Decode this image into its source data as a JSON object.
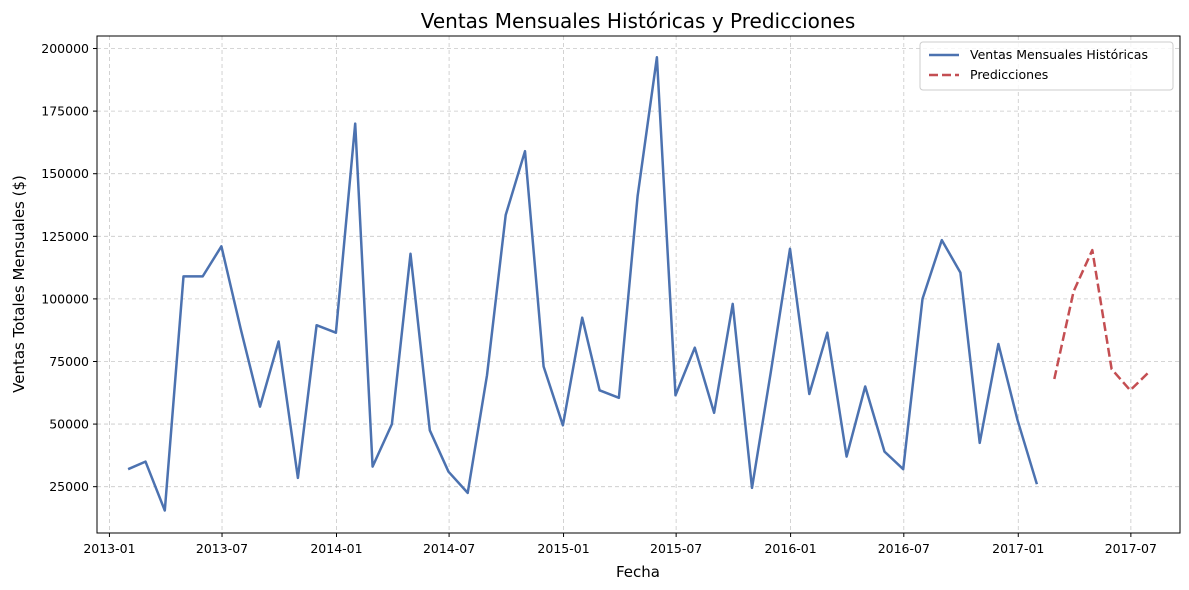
{
  "chart_data": {
    "type": "line",
    "title": "Ventas Mensuales Históricas y Predicciones",
    "xlabel": "Fecha",
    "ylabel": "Ventas Totales Mensuales ($)",
    "xlim": [
      "2012-12-12",
      "2017-09-18"
    ],
    "ylim": [
      6500,
      205000
    ],
    "x_ticks": [
      "2013-01",
      "2013-07",
      "2014-01",
      "2014-07",
      "2015-01",
      "2015-07",
      "2016-01",
      "2016-07",
      "2017-01",
      "2017-07"
    ],
    "y_ticks": [
      25000,
      50000,
      75000,
      100000,
      125000,
      150000,
      175000,
      200000
    ],
    "grid": true,
    "legend_position": "top-right",
    "series": [
      {
        "name": "Ventas Mensuales Históricas",
        "color": "#4c72b0",
        "style": "solid",
        "points": [
          [
            "2013-01-31",
            32000
          ],
          [
            "2013-02-28",
            35000
          ],
          [
            "2013-03-31",
            15500
          ],
          [
            "2013-04-30",
            109000
          ],
          [
            "2013-05-31",
            109000
          ],
          [
            "2013-06-30",
            121000
          ],
          [
            "2013-07-31",
            88000
          ],
          [
            "2013-08-31",
            57000
          ],
          [
            "2013-09-30",
            83000
          ],
          [
            "2013-10-31",
            28500
          ],
          [
            "2013-11-30",
            89500
          ],
          [
            "2013-12-31",
            86500
          ],
          [
            "2014-01-31",
            170000
          ],
          [
            "2014-02-28",
            33000
          ],
          [
            "2014-03-31",
            50000
          ],
          [
            "2014-04-30",
            118000
          ],
          [
            "2014-05-31",
            47500
          ],
          [
            "2014-06-30",
            31000
          ],
          [
            "2014-07-31",
            22500
          ],
          [
            "2014-08-31",
            69500
          ],
          [
            "2014-09-30",
            133500
          ],
          [
            "2014-10-31",
            159000
          ],
          [
            "2014-11-30",
            73000
          ],
          [
            "2014-12-31",
            49500
          ],
          [
            "2015-01-31",
            92500
          ],
          [
            "2015-02-28",
            63500
          ],
          [
            "2015-03-31",
            60500
          ],
          [
            "2015-04-30",
            141000
          ],
          [
            "2015-05-31",
            196500
          ],
          [
            "2015-06-30",
            61500
          ],
          [
            "2015-07-31",
            80500
          ],
          [
            "2015-08-31",
            54500
          ],
          [
            "2015-09-30",
            98000
          ],
          [
            "2015-10-31",
            24500
          ],
          [
            "2015-11-30",
            70500
          ],
          [
            "2015-12-31",
            120000
          ],
          [
            "2016-01-31",
            62000
          ],
          [
            "2016-02-29",
            86500
          ],
          [
            "2016-03-31",
            37000
          ],
          [
            "2016-04-30",
            65000
          ],
          [
            "2016-05-31",
            39000
          ],
          [
            "2016-06-30",
            32000
          ],
          [
            "2016-07-31",
            100000
          ],
          [
            "2016-08-31",
            123500
          ],
          [
            "2016-09-30",
            110500
          ],
          [
            "2016-10-31",
            42500
          ],
          [
            "2016-11-30",
            82000
          ],
          [
            "2016-12-31",
            51500
          ],
          [
            "2017-01-31",
            26000
          ]
        ]
      },
      {
        "name": "Predicciones",
        "color": "#c44e52",
        "style": "dashed",
        "points": [
          [
            "2017-02-28",
            68000
          ],
          [
            "2017-03-31",
            103000
          ],
          [
            "2017-04-30",
            119500
          ],
          [
            "2017-05-31",
            72000
          ],
          [
            "2017-06-30",
            63500
          ],
          [
            "2017-07-31",
            71000
          ]
        ]
      }
    ]
  }
}
